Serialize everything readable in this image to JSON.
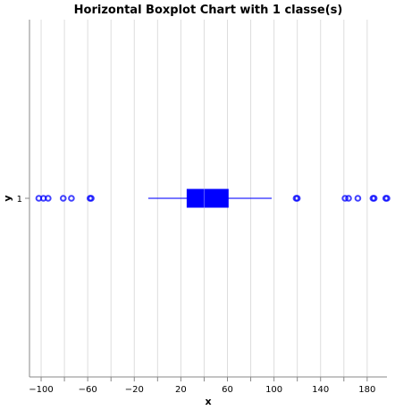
{
  "chart_data": {
    "type": "boxplot",
    "orientation": "horizontal",
    "title": "Horizontal Boxplot Chart with 1 classe(s)",
    "xlabel": "x",
    "ylabel": "y",
    "xlim": [
      -110,
      197
    ],
    "x_ticks": [
      -100,
      -80,
      -60,
      -40,
      -20,
      0,
      20,
      40,
      60,
      80,
      100,
      120,
      140,
      160,
      180
    ],
    "x_tick_labels": [
      "−100",
      "−80",
      "−60",
      "−40",
      "−20",
      "0",
      "20",
      "40",
      "60",
      "80",
      "100",
      "120",
      "140",
      "160",
      "180"
    ],
    "x_tick_label_shown": [
      true,
      false,
      true,
      false,
      true,
      false,
      true,
      false,
      true,
      false,
      true,
      false,
      true,
      false,
      true
    ],
    "grid": true,
    "categories": [
      "1"
    ],
    "series": [
      {
        "category": "1",
        "color": "#0000ff",
        "whisker_low": -8,
        "q1": 25,
        "median": 40,
        "q3": 61,
        "whisker_high": 98,
        "outliers": [
          -102,
          -98,
          -94,
          -81,
          -74,
          -58,
          -57,
          119,
          120,
          161,
          164,
          172,
          185,
          186,
          196,
          197
        ]
      }
    ]
  }
}
